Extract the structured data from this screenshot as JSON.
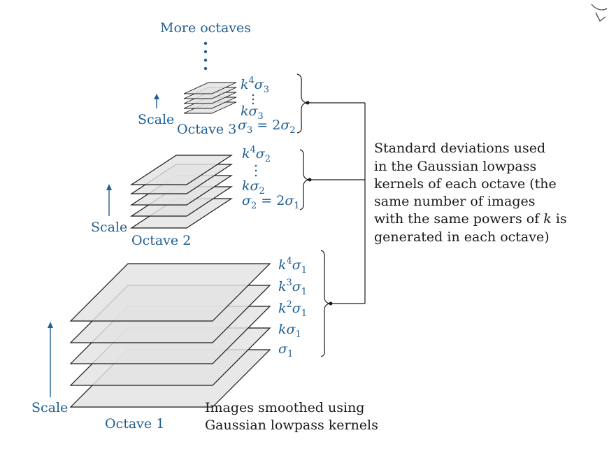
{
  "colors": {
    "accent": "#1f5f93",
    "text": "#1a1a1a",
    "plane_fill": "#e3e3e3"
  },
  "more_octaves": "More octaves",
  "octave3": {
    "label": "Octave 3",
    "scale": "Scale",
    "sigmas": [
      {
        "base": "k",
        "sup": "4",
        "greek": "σ",
        "sub": "3"
      },
      {
        "base": "k",
        "sup": "",
        "greek": "σ",
        "sub": "3"
      },
      {
        "base": "",
        "sup": "",
        "greek": "σ",
        "sub": "3",
        "eq": " = 2",
        "greek2": "σ",
        "sub2": "2"
      }
    ]
  },
  "octave2": {
    "label": "Octave 2",
    "scale": "Scale",
    "sigmas": [
      {
        "base": "k",
        "sup": "4",
        "greek": "σ",
        "sub": "2"
      },
      {
        "base": "k",
        "sup": "",
        "greek": "σ",
        "sub": "2"
      },
      {
        "base": "",
        "sup": "",
        "greek": "σ",
        "sub": "2",
        "eq": " = 2",
        "greek2": "σ",
        "sub2": "1"
      }
    ]
  },
  "octave1": {
    "label": "Octave 1",
    "scale": "Scale",
    "sigmas": [
      {
        "base": "k",
        "sup": "4",
        "greek": "σ",
        "sub": "1"
      },
      {
        "base": "k",
        "sup": "3",
        "greek": "σ",
        "sub": "1"
      },
      {
        "base": "k",
        "sup": "2",
        "greek": "σ",
        "sub": "1"
      },
      {
        "base": "k",
        "sup": "",
        "greek": "σ",
        "sub": "1"
      },
      {
        "base": "",
        "sup": "",
        "greek": "σ",
        "sub": "1"
      }
    ]
  },
  "caption_images": [
    "Images smoothed using",
    "Gaussian lowpass kernels"
  ],
  "caption_std": [
    "Standard deviations used",
    "in the Gaussian lowpass",
    "kernels of each octave (the",
    "same number of images",
    "with the same powers of ",
    "generated in each octave)"
  ],
  "caption_std_k": "k",
  "caption_std_tail": " is"
}
